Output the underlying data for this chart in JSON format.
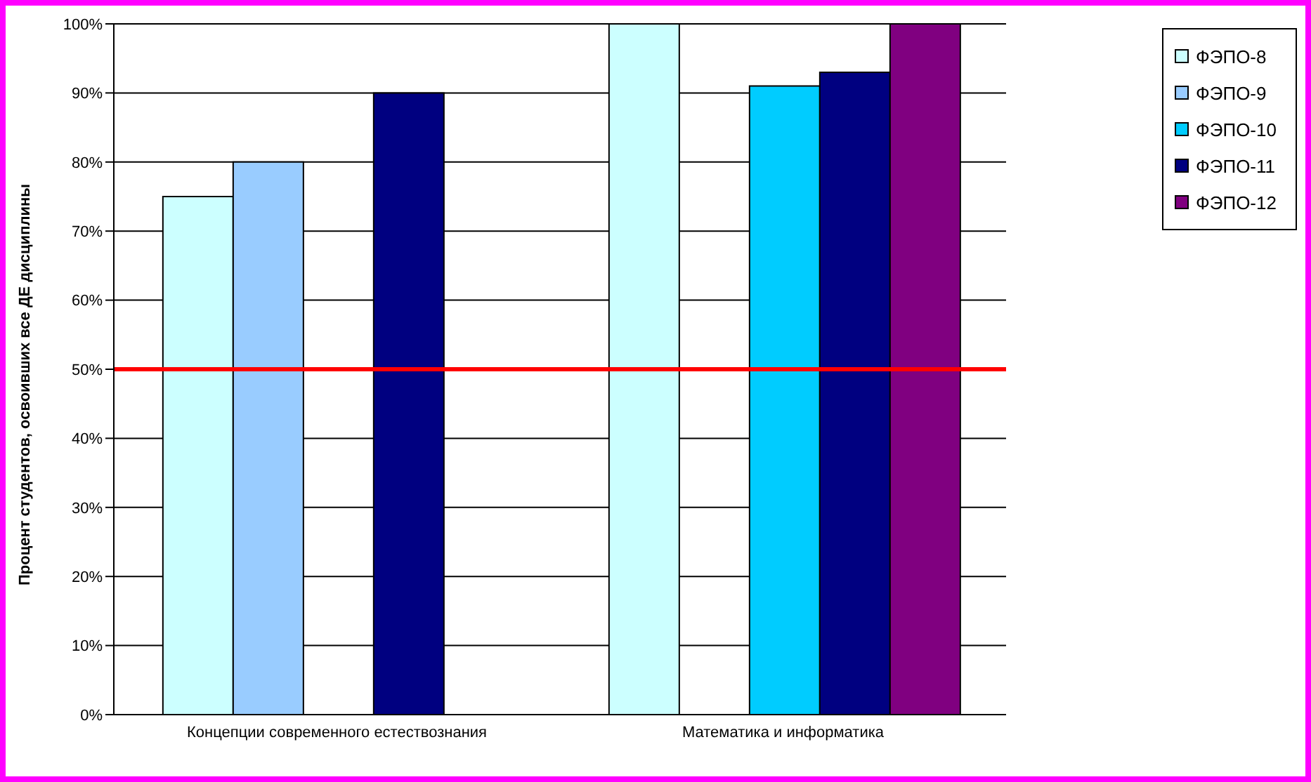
{
  "chart_data": {
    "type": "bar",
    "ylabel": "Процент студентов, освоивших все ДЕ дисциплины",
    "categories": [
      "Концепции современного естествознания",
      "Математика и информатика"
    ],
    "series": [
      {
        "name": "ФЭПО-8",
        "color": "#ccffff",
        "values": [
          75,
          100
        ]
      },
      {
        "name": "ФЭПО-9",
        "color": "#99ccff",
        "values": [
          80,
          null
        ]
      },
      {
        "name": "ФЭПО-10",
        "color": "#00ccff",
        "values": [
          null,
          91
        ]
      },
      {
        "name": "ФЭПО-11",
        "color": "#000080",
        "values": [
          90,
          93
        ]
      },
      {
        "name": "ФЭПО-12",
        "color": "#800080",
        "values": [
          null,
          100
        ]
      }
    ],
    "ylim": [
      0,
      100
    ],
    "yticks": [
      {
        "value": 0,
        "label": "0%"
      },
      {
        "value": 10,
        "label": "10%"
      },
      {
        "value": 20,
        "label": "20%"
      },
      {
        "value": 30,
        "label": "30%"
      },
      {
        "value": 40,
        "label": "40%"
      },
      {
        "value": 50,
        "label": "50%"
      },
      {
        "value": 60,
        "label": "60%"
      },
      {
        "value": 70,
        "label": "70%"
      },
      {
        "value": 80,
        "label": "80%"
      },
      {
        "value": 90,
        "label": "90%"
      },
      {
        "value": 100,
        "label": "100%"
      }
    ],
    "grid": "y",
    "legend": "right",
    "ref_lines": [
      {
        "axis": "y",
        "value": 50,
        "color": "#ff0000"
      }
    ]
  }
}
